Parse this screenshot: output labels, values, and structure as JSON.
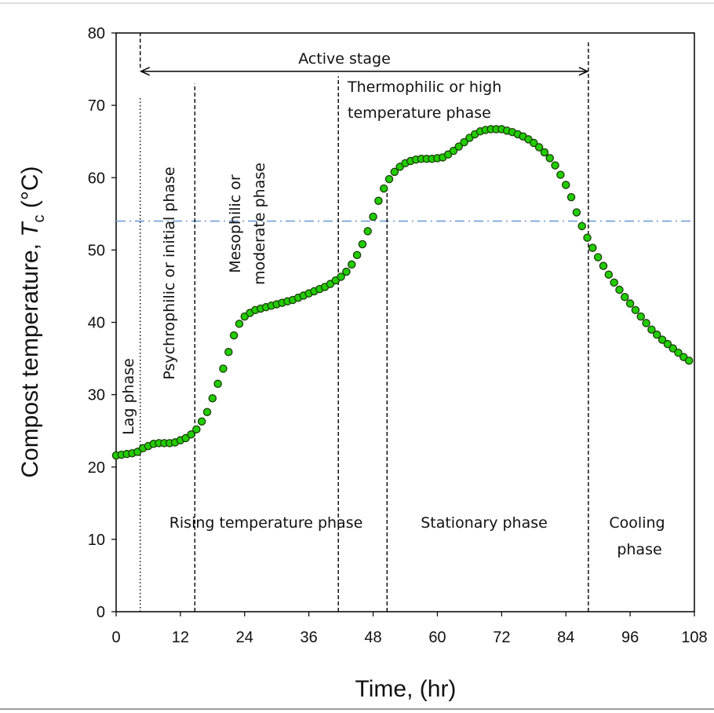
{
  "chart_data": {
    "type": "scatter",
    "xlabel": "Time, (hr)",
    "ylabel_prefix": "Compost temperature, ",
    "ylabel_symbol": "T",
    "ylabel_subscript": "c",
    "ylabel_units": " (°C)",
    "xlim": [
      0,
      108
    ],
    "ylim": [
      0,
      80
    ],
    "x_ticks": [
      0,
      12,
      24,
      36,
      48,
      60,
      72,
      84,
      96,
      108
    ],
    "y_ticks": [
      0,
      10,
      20,
      30,
      40,
      50,
      60,
      70,
      80
    ],
    "grid": false,
    "marker_color": "#22cc00",
    "marker_edge_color": "#1a3d0a",
    "reference_line": {
      "y": 54,
      "color": "#6f9fd8",
      "style": "dash-dot"
    },
    "phase_boundaries": [
      {
        "x": 4.5,
        "y_top": 73,
        "style": "dotted-lower"
      },
      {
        "x": 14.7,
        "y_top": 73,
        "style": "dashed"
      },
      {
        "x": 41.5,
        "y_top": 74,
        "style": "dashed"
      },
      {
        "x": 50.6,
        "y_top": 59,
        "style": "dashed"
      },
      {
        "x": 88.2,
        "y_top": 79,
        "style": "dashed"
      }
    ],
    "active_stage_arrow": {
      "x_start": 4.5,
      "x_end": 88.2,
      "y": 74.7
    },
    "annotations": {
      "active_stage": "Active stage",
      "thermophilic_line1": "Thermophilic or high",
      "thermophilic_line2": "temperature  phase",
      "lag_phase": "Lag phase",
      "psychrophilic": "Psychrophilic or initial phase",
      "mesophilic_line1": "Mesophilic or",
      "mesophilic_line2": "moderate phase",
      "rising": "Rising temperature  phase",
      "stationary": "Stationary phase",
      "cooling_line1": "Cooling",
      "cooling_line2": "phase"
    },
    "series": [
      {
        "x": [
          0,
          1,
          2,
          3,
          4,
          5,
          6,
          7,
          8,
          9,
          10,
          11,
          12,
          13,
          14,
          15,
          16,
          17,
          18,
          19,
          20,
          21,
          22,
          23,
          24,
          25,
          26,
          27,
          28,
          29,
          30,
          31,
          32,
          33,
          34,
          35,
          36,
          37,
          38,
          39,
          40,
          41,
          42,
          43,
          44,
          45,
          46,
          47,
          48,
          49,
          50,
          51,
          52,
          53,
          54,
          55,
          56,
          57,
          58,
          59,
          60,
          61,
          62,
          63,
          64,
          65,
          66,
          67,
          68,
          69,
          70,
          71,
          72,
          73,
          74,
          75,
          76,
          77,
          78,
          79,
          80,
          81,
          82,
          83,
          84,
          85,
          86,
          87,
          88,
          89,
          90,
          91,
          92,
          93,
          94,
          95,
          96,
          97,
          98,
          99,
          100,
          101,
          102,
          103,
          104,
          105,
          106,
          107
        ],
        "y": [
          21.6,
          21.7,
          21.8,
          21.9,
          22.1,
          22.6,
          22.9,
          23.2,
          23.3,
          23.3,
          23.3,
          23.4,
          23.7,
          24.0,
          24.5,
          25.2,
          26.3,
          27.6,
          29.5,
          31.5,
          33.6,
          35.9,
          38.2,
          39.8,
          40.8,
          41.3,
          41.7,
          41.9,
          42.1,
          42.3,
          42.5,
          42.7,
          42.9,
          43.1,
          43.4,
          43.7,
          44.0,
          44.3,
          44.6,
          44.9,
          45.3,
          45.8,
          46.3,
          47.0,
          48.0,
          49.3,
          50.8,
          52.6,
          54.6,
          56.8,
          58.5,
          59.8,
          60.8,
          61.5,
          62.0,
          62.3,
          62.5,
          62.6,
          62.6,
          62.6,
          62.7,
          62.8,
          63.2,
          63.7,
          64.3,
          64.9,
          65.5,
          66.0,
          66.4,
          66.6,
          66.7,
          66.7,
          66.7,
          66.5,
          66.3,
          66.0,
          65.7,
          65.3,
          64.8,
          64.2,
          63.5,
          62.7,
          61.7,
          60.4,
          59.0,
          57.3,
          55.2,
          53.3,
          51.7,
          50.3,
          49.0,
          47.8,
          46.6,
          45.5,
          44.5,
          43.5,
          42.6,
          41.7,
          40.8,
          39.9,
          39.0,
          38.3,
          37.6,
          37.0,
          36.4,
          35.8,
          35.2,
          34.7
        ]
      }
    ]
  }
}
